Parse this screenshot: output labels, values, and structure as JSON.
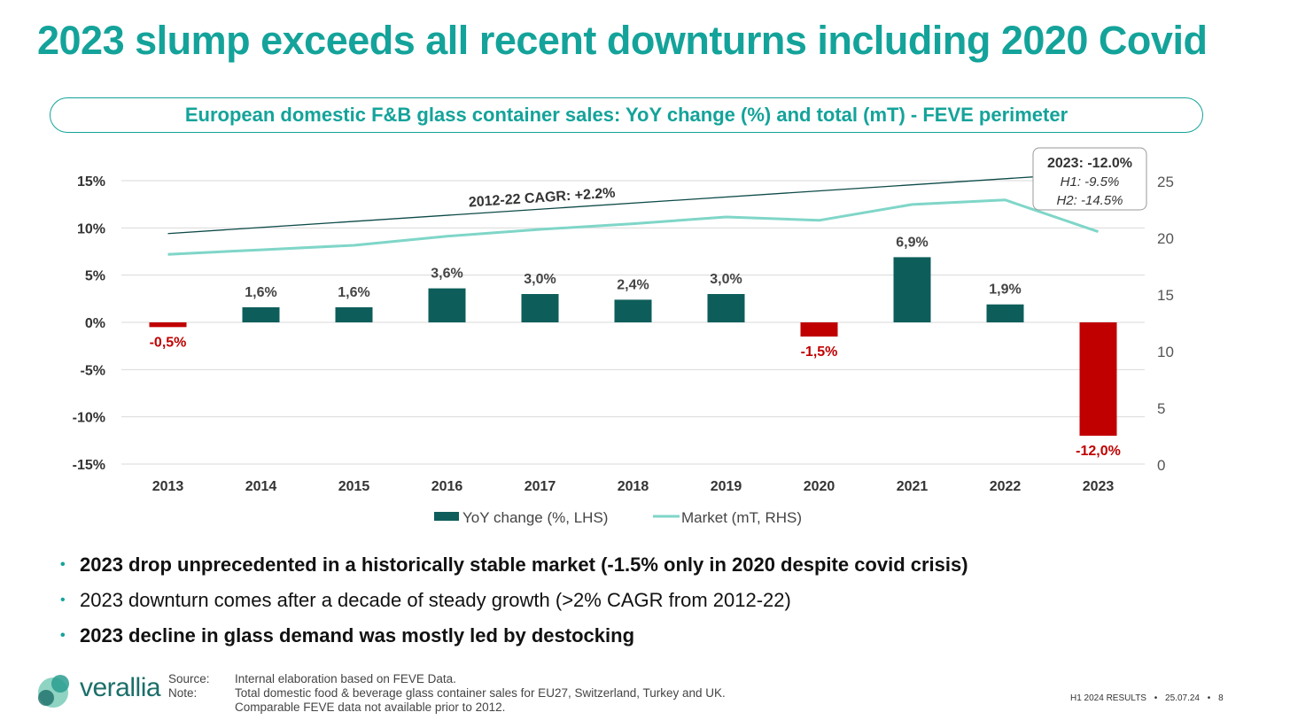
{
  "slide": {
    "title": "2023 slump exceeds all recent downturns including 2020 Covid",
    "subtitle": "European domestic F&B glass container sales: YoY change (%) and total (mT) - FEVE perimeter"
  },
  "chart_data": {
    "type": "bar",
    "categories": [
      "2013",
      "2014",
      "2015",
      "2016",
      "2017",
      "2018",
      "2019",
      "2020",
      "2021",
      "2022",
      "2023"
    ],
    "series": [
      {
        "name": "YoY change (%, LHS)",
        "type": "bar",
        "axis": "left",
        "values": [
          -0.5,
          1.6,
          1.6,
          3.6,
          3.0,
          2.4,
          3.0,
          -1.5,
          6.9,
          1.9,
          -12.0
        ],
        "labels": [
          "-0,5%",
          "1,6%",
          "1,6%",
          "3,6%",
          "3,0%",
          "2,4%",
          "3,0%",
          "-1,5%",
          "6,9%",
          "1,9%",
          "-12,0%"
        ]
      },
      {
        "name": "Market (mT, RHS)",
        "type": "line",
        "axis": "right",
        "values": [
          18.5,
          18.9,
          19.3,
          20.1,
          20.7,
          21.2,
          21.8,
          21.5,
          22.9,
          23.3,
          20.5
        ]
      }
    ],
    "y_left": {
      "min": -15,
      "max": 15,
      "ticks": [
        "15%",
        "10%",
        "5%",
        "0%",
        "-5%",
        "-10%",
        "-15%"
      ],
      "tick_values": [
        15,
        10,
        5,
        0,
        -5,
        -10,
        -15
      ]
    },
    "y_right": {
      "min": 0,
      "max": 25,
      "ticks": [
        "25",
        "20",
        "15",
        "10",
        "5",
        "0"
      ],
      "tick_values": [
        25,
        20,
        15,
        10,
        5,
        0
      ]
    },
    "trend": {
      "label": "2012-22 CAGR: +2.2%",
      "from_value": 9.4,
      "to_value": 15.5
    },
    "callout": {
      "line1": "2023: -12.0%",
      "line2": "H1: -9.5%",
      "line3": "H2: -14.5%"
    },
    "legend_position": "bottom",
    "grid": true,
    "colors": {
      "positive": "#0d5e5b",
      "negative": "#c00000",
      "line": "#7fd6c8",
      "trend": "#0d4a48"
    }
  },
  "bullets": [
    {
      "text": "2023 drop unprecedented in a historically stable market (-1.5% only in 2020 despite covid crisis)",
      "bold": true
    },
    {
      "text": "2023 downturn comes after a decade of steady growth (>2% CAGR from 2012-22)",
      "bold": false
    },
    {
      "text": "2023 decline in glass demand was mostly led by destocking",
      "bold": true
    }
  ],
  "footnotes": {
    "source_label": "Source:",
    "source_text": "Internal elaboration based on FEVE Data.",
    "note_label": "Note:",
    "note_line1": "Total domestic food & beverage glass container sales for EU27, Switzerland, Turkey and UK.",
    "note_line2": "Comparable FEVE data not available prior to 2012."
  },
  "brand": {
    "name": "verallia"
  },
  "footer": {
    "report": "H1 2024 RESULTS",
    "date": "25.07.24",
    "page": "8",
    "separator": "•"
  }
}
